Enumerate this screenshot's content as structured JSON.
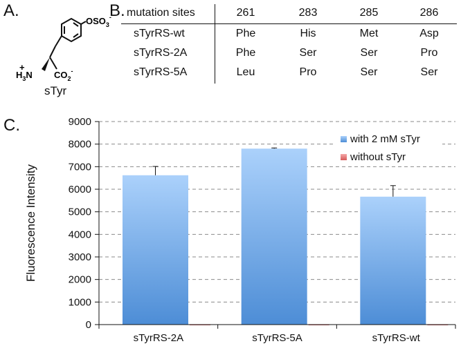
{
  "panels": {
    "a": "A.",
    "b": "B.",
    "c": "C."
  },
  "molecule": {
    "name": "sTyr",
    "sulfate_group": "OSO",
    "sulfate_sub": "3",
    "sulfate_charge": "-",
    "amine_h": "H",
    "amine_sub": "3",
    "amine_n": "N",
    "amine_charge": "+",
    "carboxylate": "CO",
    "carboxylate_sub": "2",
    "carboxylate_charge": "-"
  },
  "mutation_table": {
    "header": [
      "mutation sites",
      "261",
      "283",
      "285",
      "286"
    ],
    "rows": [
      [
        "sTyrRS-wt",
        "Phe",
        "His",
        "Met",
        "Asp"
      ],
      [
        "sTyrRS-2A",
        "Phe",
        "Ser",
        "Ser",
        "Pro"
      ],
      [
        "sTyrRS-5A",
        "Leu",
        "Pro",
        "Ser",
        "Ser"
      ]
    ]
  },
  "chart_data": {
    "type": "bar",
    "categories": [
      "sTyrRS-2A",
      "sTyrRS-5A",
      "sTyrRS-wt"
    ],
    "series": [
      {
        "name": "with 2 mM sTyr",
        "values": [
          6620,
          7800,
          5670
        ],
        "errors": [
          390,
          30,
          490
        ],
        "color": "#5b9be0"
      },
      {
        "name": "without sTyr",
        "values": [
          15,
          15,
          15
        ],
        "errors": [
          0,
          0,
          0
        ],
        "color": "#e06666"
      }
    ],
    "title": "",
    "xlabel": "",
    "ylabel": "Fluorescence Intensity",
    "ylim": [
      0,
      9000
    ],
    "yticks": [
      0,
      1000,
      2000,
      3000,
      4000,
      5000,
      6000,
      7000,
      8000,
      9000
    ],
    "grid": true,
    "legend": "top-right"
  }
}
